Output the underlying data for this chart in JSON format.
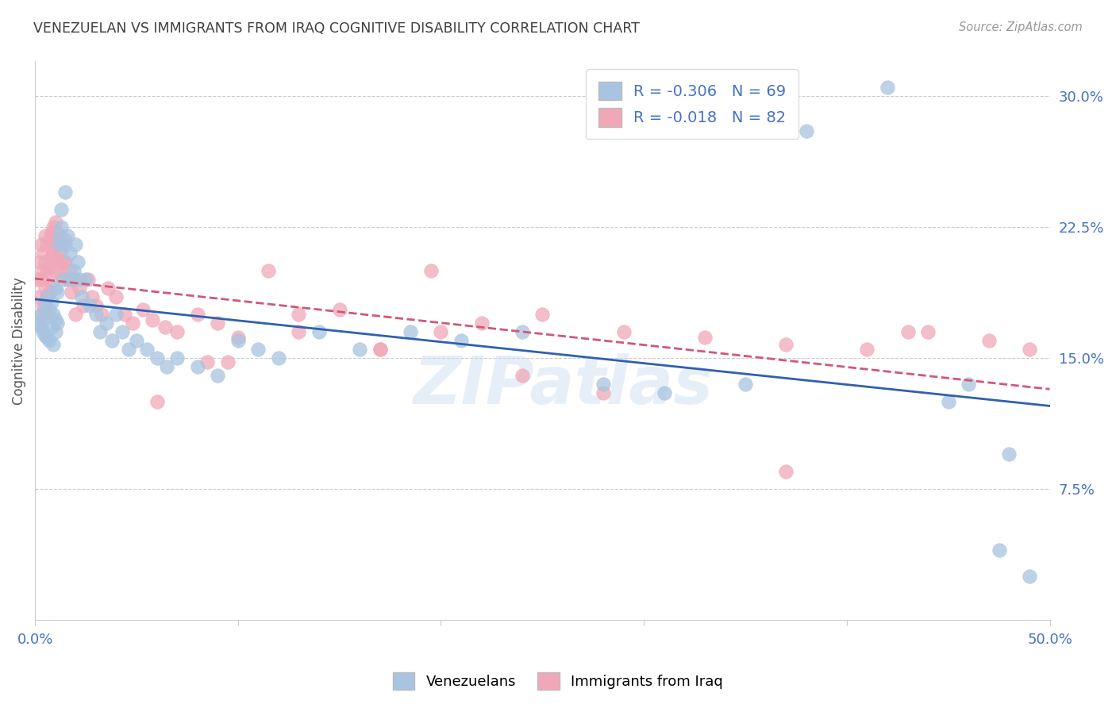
{
  "title": "VENEZUELAN VS IMMIGRANTS FROM IRAQ COGNITIVE DISABILITY CORRELATION CHART",
  "source": "Source: ZipAtlas.com",
  "ylabel": "Cognitive Disability",
  "y_ticks": [
    0.075,
    0.15,
    0.225,
    0.3
  ],
  "y_tick_labels": [
    "7.5%",
    "15.0%",
    "22.5%",
    "30.0%"
  ],
  "legend_label_venezuelans": "Venezuelans",
  "legend_label_iraq": "Immigrants from Iraq",
  "R_venezuelan": -0.306,
  "N_venezuelan": 69,
  "R_iraq": -0.018,
  "N_iraq": 82,
  "venezuelan_color": "#a8c4e0",
  "iraq_color": "#f0a8b8",
  "venezuelan_line_color": "#3060b0",
  "iraq_line_color": "#d05878",
  "title_color": "#404040",
  "axis_color": "#4472c4",
  "background_color": "#ffffff",
  "grid_color": "#cccccc",
  "xlim": [
    0.0,
    0.5
  ],
  "ylim": [
    0.0,
    0.32
  ],
  "venezuelan_x": [
    0.002,
    0.003,
    0.003,
    0.004,
    0.004,
    0.005,
    0.005,
    0.006,
    0.006,
    0.007,
    0.007,
    0.008,
    0.008,
    0.009,
    0.009,
    0.01,
    0.01,
    0.01,
    0.011,
    0.011,
    0.012,
    0.012,
    0.013,
    0.013,
    0.014,
    0.015,
    0.015,
    0.016,
    0.017,
    0.018,
    0.019,
    0.02,
    0.021,
    0.022,
    0.023,
    0.025,
    0.027,
    0.03,
    0.032,
    0.035,
    0.038,
    0.04,
    0.043,
    0.046,
    0.05,
    0.055,
    0.06,
    0.065,
    0.07,
    0.08,
    0.09,
    0.1,
    0.11,
    0.12,
    0.14,
    0.16,
    0.185,
    0.21,
    0.24,
    0.28,
    0.31,
    0.35,
    0.38,
    0.42,
    0.45,
    0.46,
    0.475,
    0.48,
    0.49
  ],
  "venezuelan_y": [
    0.17,
    0.175,
    0.168,
    0.165,
    0.172,
    0.18,
    0.163,
    0.185,
    0.162,
    0.178,
    0.16,
    0.182,
    0.168,
    0.175,
    0.158,
    0.19,
    0.172,
    0.165,
    0.188,
    0.17,
    0.22,
    0.215,
    0.225,
    0.235,
    0.195,
    0.245,
    0.215,
    0.22,
    0.21,
    0.195,
    0.2,
    0.215,
    0.205,
    0.195,
    0.185,
    0.195,
    0.18,
    0.175,
    0.165,
    0.17,
    0.16,
    0.175,
    0.165,
    0.155,
    0.16,
    0.155,
    0.15,
    0.145,
    0.15,
    0.145,
    0.14,
    0.16,
    0.155,
    0.15,
    0.165,
    0.155,
    0.165,
    0.16,
    0.165,
    0.135,
    0.13,
    0.135,
    0.28,
    0.305,
    0.125,
    0.135,
    0.04,
    0.095,
    0.025
  ],
  "iraq_x": [
    0.001,
    0.002,
    0.002,
    0.003,
    0.003,
    0.003,
    0.004,
    0.004,
    0.004,
    0.005,
    0.005,
    0.005,
    0.005,
    0.006,
    0.006,
    0.006,
    0.007,
    0.007,
    0.007,
    0.008,
    0.008,
    0.008,
    0.009,
    0.009,
    0.01,
    0.01,
    0.01,
    0.011,
    0.011,
    0.012,
    0.012,
    0.013,
    0.013,
    0.014,
    0.015,
    0.015,
    0.016,
    0.017,
    0.018,
    0.019,
    0.02,
    0.022,
    0.024,
    0.026,
    0.028,
    0.03,
    0.033,
    0.036,
    0.04,
    0.044,
    0.048,
    0.053,
    0.058,
    0.064,
    0.07,
    0.08,
    0.09,
    0.1,
    0.115,
    0.13,
    0.15,
    0.17,
    0.195,
    0.22,
    0.25,
    0.29,
    0.33,
    0.37,
    0.41,
    0.44,
    0.47,
    0.49,
    0.095,
    0.13,
    0.17,
    0.2,
    0.24,
    0.28,
    0.37,
    0.43,
    0.06,
    0.085
  ],
  "iraq_y": [
    0.195,
    0.205,
    0.185,
    0.215,
    0.195,
    0.175,
    0.21,
    0.2,
    0.18,
    0.22,
    0.205,
    0.19,
    0.175,
    0.215,
    0.2,
    0.185,
    0.218,
    0.202,
    0.188,
    0.222,
    0.208,
    0.193,
    0.225,
    0.21,
    0.228,
    0.215,
    0.2,
    0.222,
    0.208,
    0.218,
    0.205,
    0.212,
    0.198,
    0.205,
    0.218,
    0.205,
    0.195,
    0.2,
    0.188,
    0.195,
    0.175,
    0.19,
    0.18,
    0.195,
    0.185,
    0.18,
    0.175,
    0.19,
    0.185,
    0.175,
    0.17,
    0.178,
    0.172,
    0.168,
    0.165,
    0.175,
    0.17,
    0.162,
    0.2,
    0.165,
    0.178,
    0.155,
    0.2,
    0.17,
    0.175,
    0.165,
    0.162,
    0.158,
    0.155,
    0.165,
    0.16,
    0.155,
    0.148,
    0.175,
    0.155,
    0.165,
    0.14,
    0.13,
    0.085,
    0.165,
    0.125,
    0.148
  ]
}
